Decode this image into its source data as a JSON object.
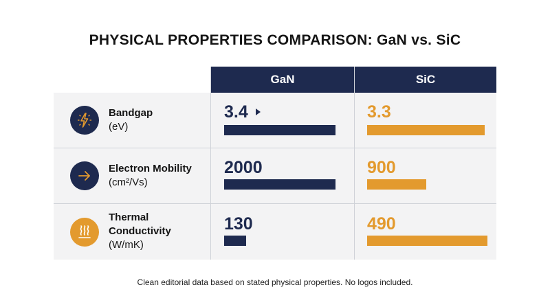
{
  "title": "PHYSICAL PROPERTIES COMPARISON: GaN vs. SiC",
  "columns": [
    "GaN",
    "SiC"
  ],
  "rows": [
    {
      "name": "Bandgap",
      "unit": "(eV)",
      "icon": "lightning-icon",
      "gan_display": "3.4",
      "sic_display": "3.3"
    },
    {
      "name": "Electron Mobility",
      "unit": "(cm²/Vs)",
      "icon": "arrow-right-icon",
      "gan_display": "2000",
      "sic_display": "900"
    },
    {
      "name": "Thermal Conductivity",
      "name_lines": [
        "Thermal",
        "Conductivity"
      ],
      "unit": "(W/mK)",
      "icon": "heat-waves-icon",
      "gan_display": "130",
      "sic_display": "490"
    }
  ],
  "chart_data": {
    "type": "bar",
    "title": "PHYSICAL PROPERTIES COMPARISON: GaN vs. SiC",
    "categories": [
      "Bandgap (eV)",
      "Electron Mobility (cm²/Vs)",
      "Thermal Conductivity (W/mK)"
    ],
    "series": [
      {
        "name": "GaN",
        "values": [
          3.4,
          2000,
          130
        ],
        "bar_fill_fraction": [
          0.9,
          0.9,
          0.18
        ]
      },
      {
        "name": "SiC",
        "values": [
          3.3,
          900,
          490
        ],
        "bar_fill_fraction": [
          0.95,
          0.48,
          0.97
        ]
      }
    ]
  },
  "colors": {
    "navy": "#1e2a4f",
    "gold": "#e39a2e",
    "row_bg": "#f3f3f4"
  },
  "footnote": "Clean editorial data based on stated physical properties. No logos included."
}
